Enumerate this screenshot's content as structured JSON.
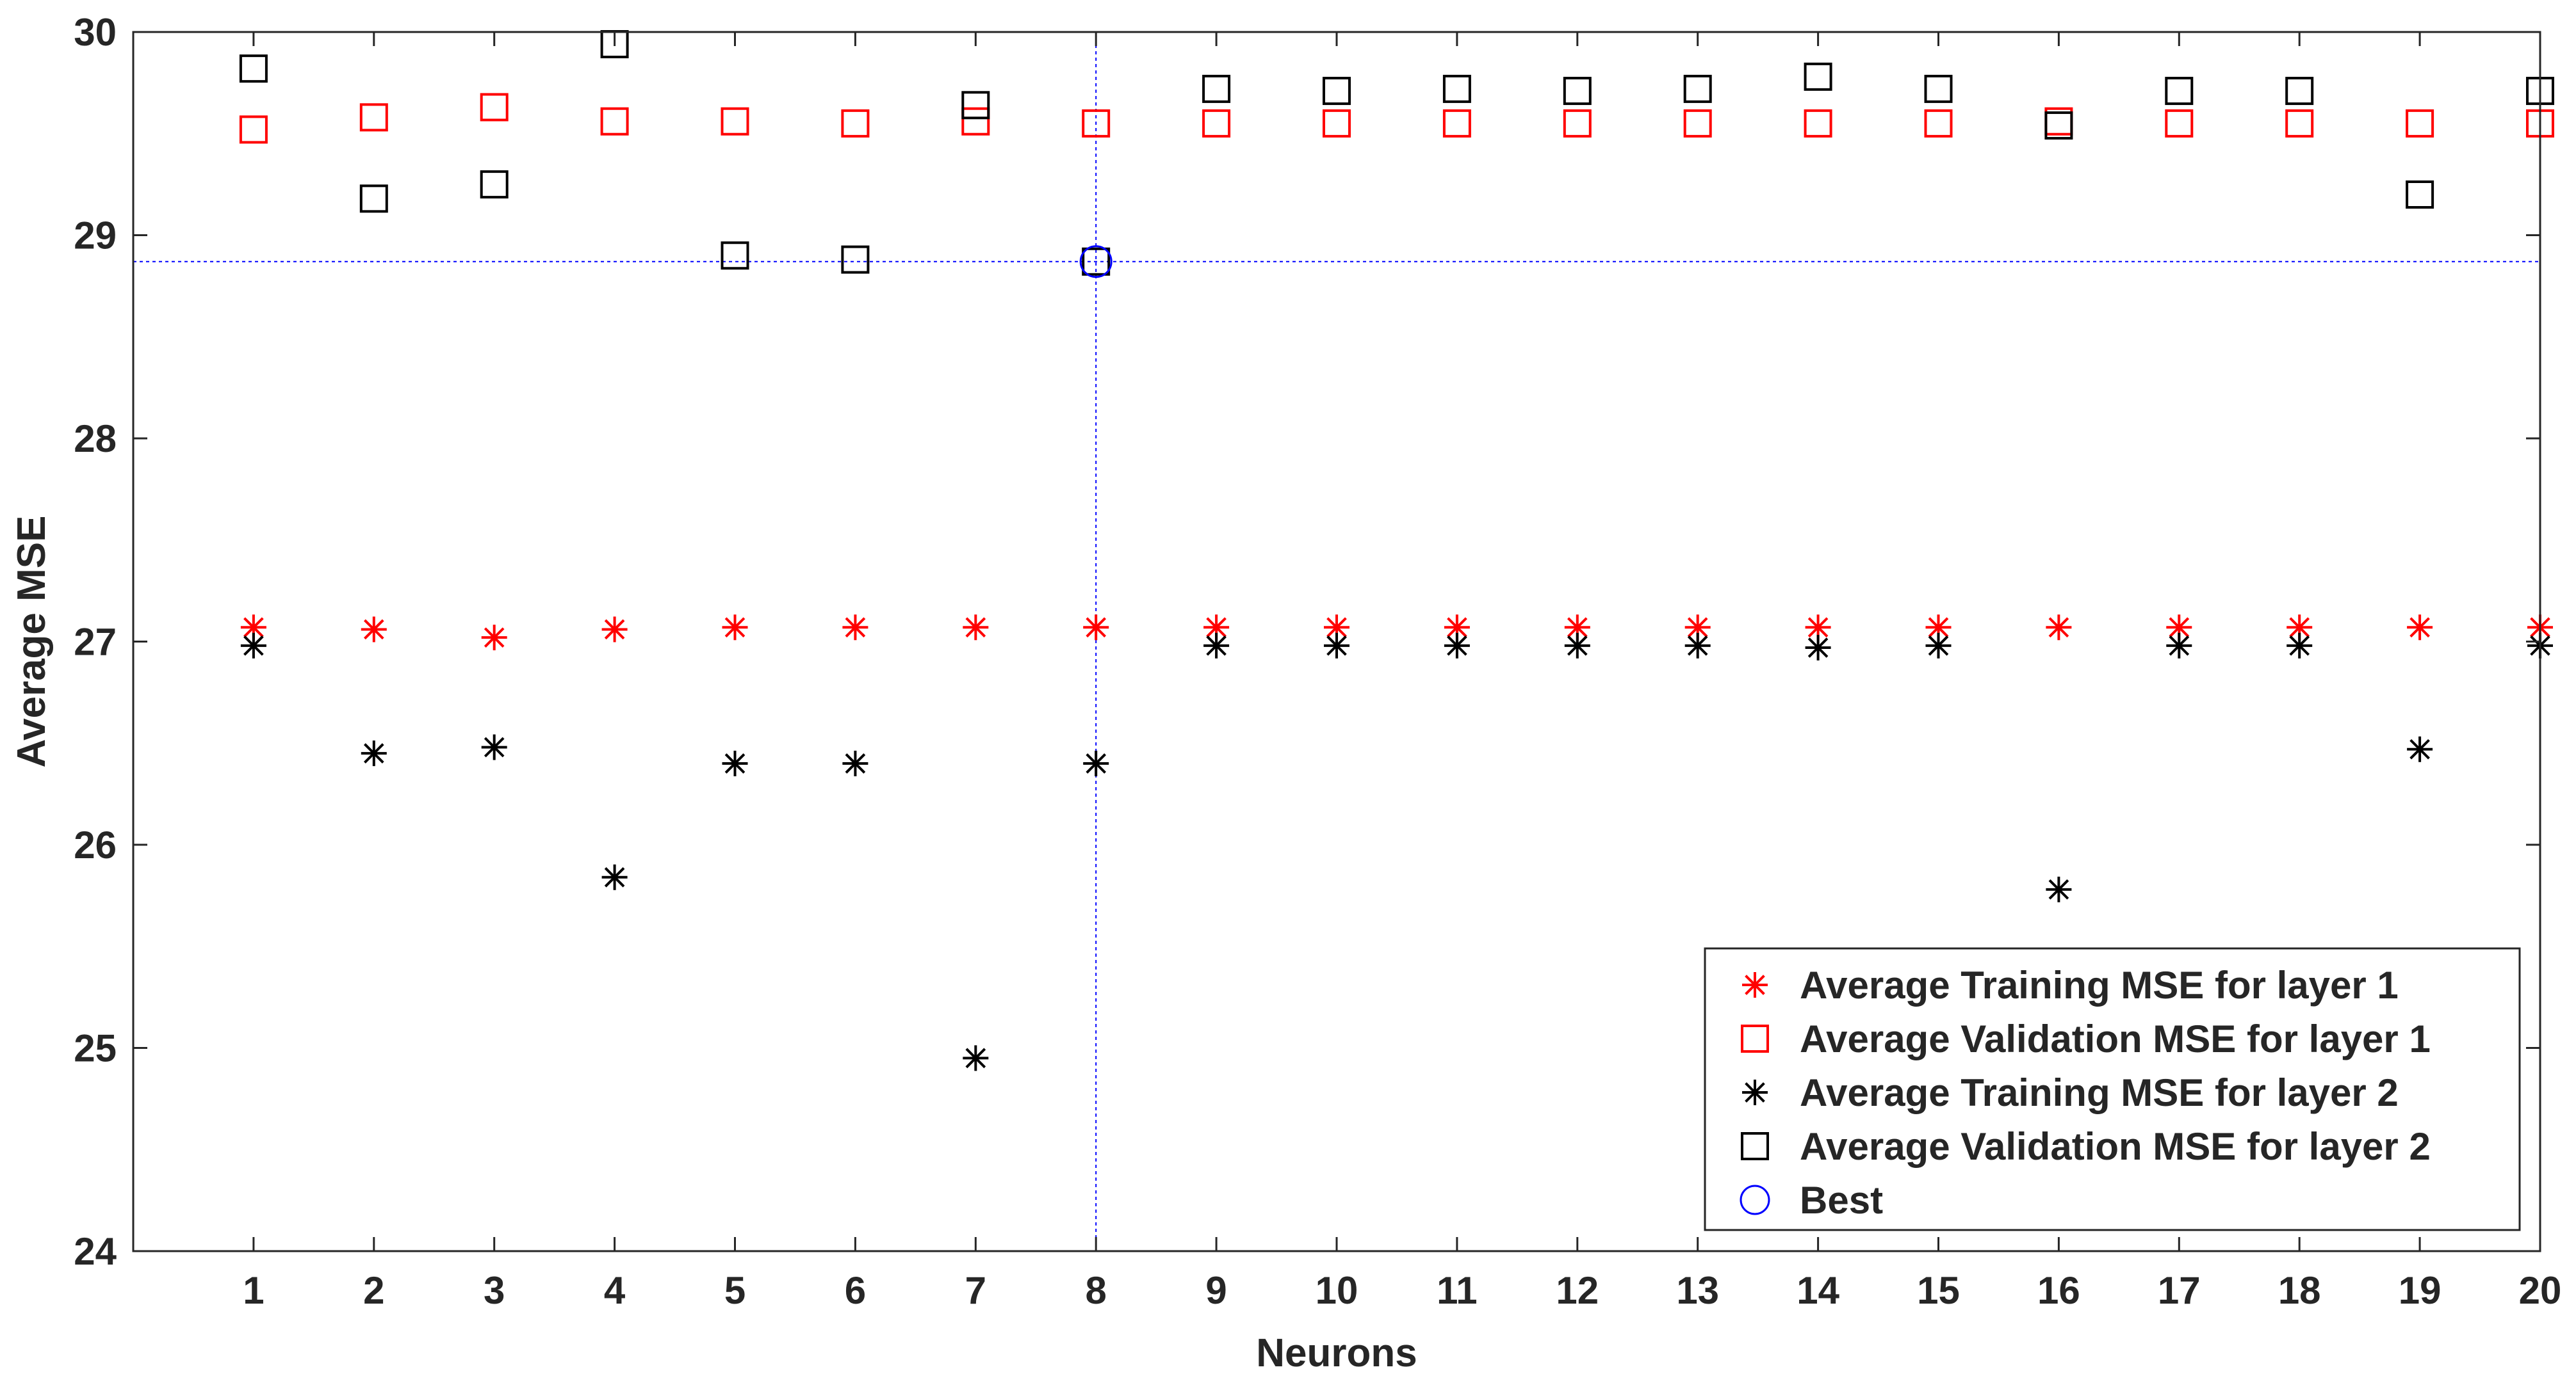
{
  "chart_data": {
    "type": "scatter",
    "title": "",
    "xlabel": "Neurons",
    "ylabel": "Average MSE",
    "xlim": [
      0,
      20
    ],
    "ylim": [
      24,
      30
    ],
    "x_ticks": [
      "1",
      "2",
      "3",
      "4",
      "5",
      "6",
      "7",
      "8",
      "9",
      "10",
      "11",
      "12",
      "13",
      "14",
      "15",
      "16",
      "17",
      "18",
      "19",
      "20"
    ],
    "y_ticks": [
      "24",
      "25",
      "26",
      "27",
      "28",
      "29",
      "30"
    ],
    "x": [
      1,
      2,
      3,
      4,
      5,
      6,
      7,
      8,
      9,
      10,
      11,
      12,
      13,
      14,
      15,
      16,
      17,
      18,
      19,
      20
    ],
    "series": [
      {
        "name": "Average Training MSE for layer 1",
        "marker": "asterisk",
        "color": "#ff0000",
        "values": [
          27.07,
          27.06,
          27.02,
          27.06,
          27.07,
          27.07,
          27.07,
          27.07,
          27.07,
          27.07,
          27.07,
          27.07,
          27.07,
          27.07,
          27.07,
          27.07,
          27.07,
          27.07,
          27.07,
          27.07
        ]
      },
      {
        "name": "Average Validation MSE for layer 1",
        "marker": "square",
        "color": "#ff0000",
        "values": [
          29.52,
          29.58,
          29.63,
          29.56,
          29.56,
          29.55,
          29.56,
          29.55,
          29.55,
          29.55,
          29.55,
          29.55,
          29.55,
          29.55,
          29.55,
          29.56,
          29.55,
          29.55,
          29.55,
          29.55
        ]
      },
      {
        "name": "Average Training MSE for layer 2",
        "marker": "asterisk",
        "color": "#000000",
        "values": [
          26.98,
          26.45,
          26.48,
          25.84,
          26.4,
          26.4,
          24.95,
          26.4,
          26.98,
          26.98,
          26.98,
          26.98,
          26.98,
          26.97,
          26.98,
          25.78,
          26.98,
          26.98,
          26.47,
          26.98
        ]
      },
      {
        "name": "Average Validation MSE for layer 2",
        "marker": "square",
        "color": "#000000",
        "values": [
          29.82,
          29.18,
          29.25,
          29.94,
          28.9,
          28.88,
          29.64,
          28.87,
          29.72,
          29.71,
          29.72,
          29.71,
          29.72,
          29.78,
          29.72,
          29.54,
          29.71,
          29.71,
          29.2,
          29.71
        ]
      },
      {
        "name": "Best",
        "marker": "circle",
        "color": "#0000ff",
        "points": [
          {
            "x": 8,
            "y": 28.87
          }
        ]
      }
    ],
    "reference_lines": {
      "x": 8,
      "y": 28.87,
      "color": "#0000ff",
      "style": "dotted"
    },
    "legend_position": "bottom-right",
    "grid": false
  }
}
